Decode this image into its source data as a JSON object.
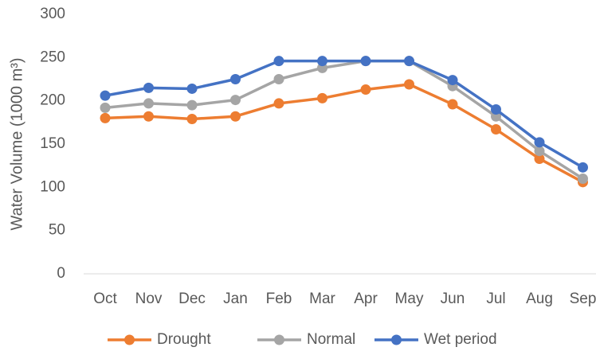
{
  "chart_data": {
    "type": "line",
    "y_label": "Water Volume (1000 m³)",
    "categories": [
      "Oct",
      "Nov",
      "Dec",
      "Jan",
      "Feb",
      "Mar",
      "Apr",
      "May",
      "Jun",
      "Jul",
      "Aug",
      "Sep"
    ],
    "series": [
      {
        "name": "Drought",
        "color": "#ed7d31",
        "values": [
          180,
          182,
          179,
          182,
          197,
          203,
          213,
          219,
          196,
          167,
          133,
          106
        ]
      },
      {
        "name": "Normal",
        "color": "#a5a5a5",
        "values": [
          192,
          197,
          195,
          201,
          225,
          238,
          246,
          246,
          217,
          182,
          142,
          110
        ]
      },
      {
        "name": "Wet period",
        "color": "#4472c4",
        "values": [
          206,
          215,
          214,
          225,
          246,
          246,
          246,
          246,
          224,
          190,
          152,
          123
        ]
      }
    ],
    "ylim": [
      0,
      300
    ],
    "yticks": [
      0,
      50,
      100,
      150,
      200,
      250,
      300
    ],
    "grid": false,
    "legend": "bottom"
  }
}
